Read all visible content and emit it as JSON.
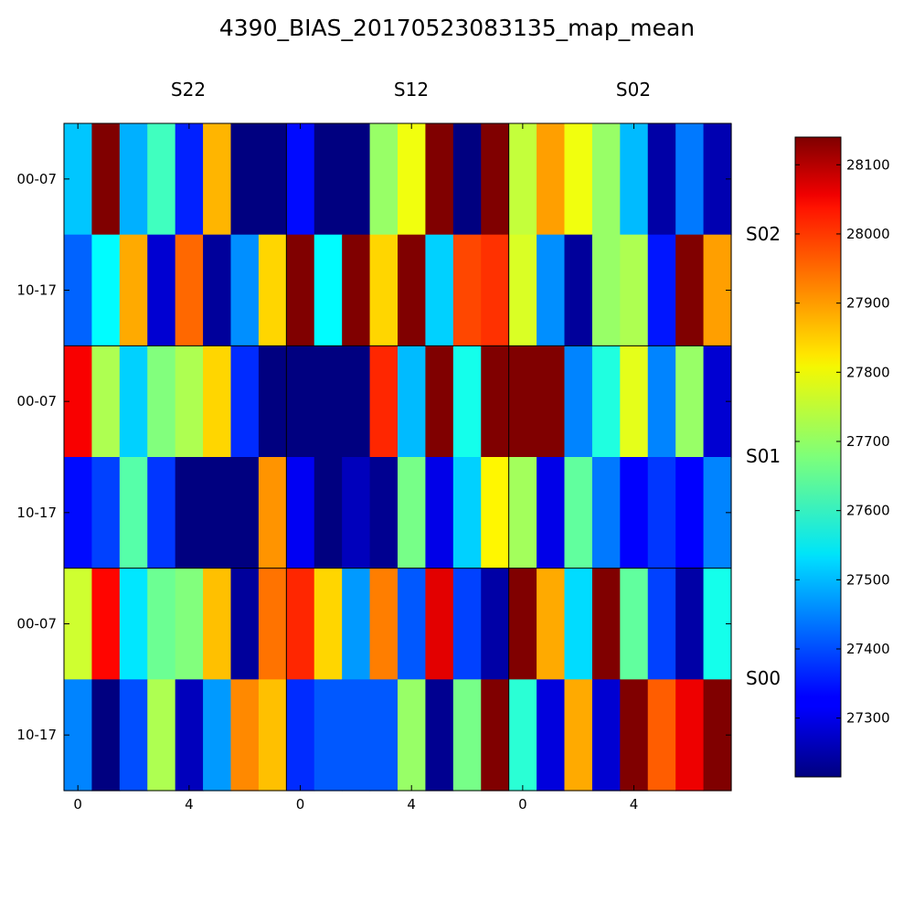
{
  "title": "4390_BIAS_20170523083135_map_mean",
  "column_groups": [
    "S22",
    "S12",
    "S02"
  ],
  "row_groups": [
    "S02",
    "S01",
    "S00"
  ],
  "chart_data": {
    "type": "heatmap",
    "title": "4390_BIAS_20170523083135_map_mean",
    "columns_per_group": 8,
    "x_tick_labels": [
      {
        "col": 0,
        "label": "0"
      },
      {
        "col": 4,
        "label": "4"
      },
      {
        "col": 8,
        "label": "0"
      },
      {
        "col": 12,
        "label": "4"
      },
      {
        "col": 16,
        "label": "0"
      },
      {
        "col": 20,
        "label": "4"
      }
    ],
    "y_tick_labels": [
      "00-07",
      "10-17",
      "00-07",
      "10-17",
      "00-07",
      "10-17"
    ],
    "colorbar": {
      "vmin": 27215,
      "vmax": 28140,
      "ticks": [
        27300,
        27400,
        27500,
        27600,
        27700,
        27800,
        27900,
        28000,
        28100
      ],
      "colormap": "jet"
    },
    "values": [
      [
        27510,
        28140,
        27490,
        27620,
        27360,
        27860,
        27215,
        27215,
        27340,
        27215,
        27215,
        27700,
        27780,
        28140,
        27215,
        28140,
        27740,
        27880,
        27780,
        27700,
        27500,
        27250,
        27440,
        27260
      ],
      [
        27420,
        27560,
        27870,
        27290,
        27930,
        27240,
        27460,
        27830,
        28140,
        27560,
        28140,
        27830,
        28140,
        27520,
        27960,
        27980,
        27760,
        27460,
        27240,
        27700,
        27720,
        27350,
        28140,
        27880
      ],
      [
        28030,
        27720,
        27520,
        27680,
        27720,
        27830,
        27370,
        27215,
        27215,
        27215,
        27215,
        27990,
        27500,
        28140,
        27580,
        28140,
        28140,
        28140,
        27450,
        27590,
        27770,
        27450,
        27700,
        27290
      ],
      [
        27340,
        27390,
        27640,
        27380,
        27215,
        27215,
        27215,
        27890,
        27320,
        27215,
        27270,
        27230,
        27670,
        27310,
        27520,
        27800,
        27710,
        27310,
        27650,
        27440,
        27330,
        27380,
        27330,
        27450
      ],
      [
        27750,
        28020,
        27540,
        27660,
        27680,
        27850,
        27240,
        27920,
        27990,
        27830,
        27470,
        27910,
        27410,
        28050,
        27390,
        27250,
        28140,
        27870,
        27530,
        28140,
        27650,
        27390,
        27250,
        27580
      ],
      [
        27450,
        27215,
        27400,
        27720,
        27270,
        27470,
        27900,
        27850,
        27370,
        27410,
        27410,
        27410,
        27700,
        27230,
        27670,
        28140,
        27600,
        27300,
        27870,
        27290,
        28140,
        27940,
        28040,
        28140
      ]
    ]
  }
}
